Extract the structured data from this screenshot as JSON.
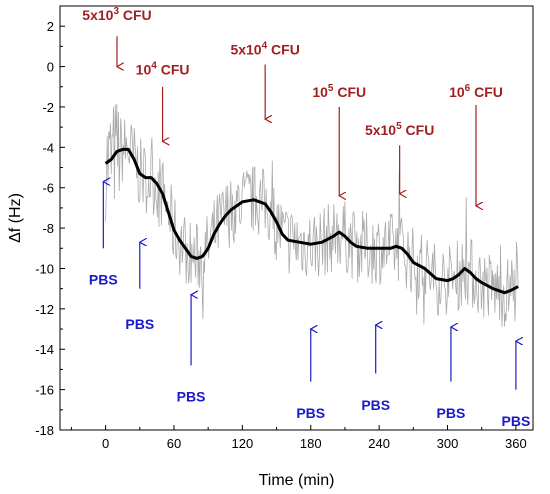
{
  "chart_data": {
    "type": "line",
    "xlabel": "Time (min)",
    "ylabel": "Δf (Hz)",
    "xlim": [
      -40,
      375
    ],
    "ylim": [
      -18,
      3
    ],
    "xticks": [
      0,
      60,
      120,
      180,
      240,
      300,
      360
    ],
    "yticks": [
      2,
      0,
      -2,
      -4,
      -6,
      -8,
      -10,
      -12,
      -14,
      -16,
      -18
    ],
    "series": [
      {
        "color": "#000000",
        "points": [
          [
            0,
            -4.8
          ],
          [
            5,
            -4.6
          ],
          [
            10,
            -4.2
          ],
          [
            15,
            -4.1
          ],
          [
            20,
            -4.1
          ],
          [
            25,
            -4.6
          ],
          [
            30,
            -5.3
          ],
          [
            35,
            -5.5
          ],
          [
            40,
            -5.5
          ],
          [
            45,
            -5.8
          ],
          [
            50,
            -6.3
          ],
          [
            55,
            -7.2
          ],
          [
            60,
            -8.1
          ],
          [
            65,
            -8.6
          ],
          [
            70,
            -9.0
          ],
          [
            75,
            -9.4
          ],
          [
            80,
            -9.5
          ],
          [
            85,
            -9.4
          ],
          [
            90,
            -9.0
          ],
          [
            95,
            -8.3
          ],
          [
            100,
            -7.8
          ],
          [
            105,
            -7.4
          ],
          [
            110,
            -7.1
          ],
          [
            115,
            -6.9
          ],
          [
            120,
            -6.7
          ],
          [
            130,
            -6.6
          ],
          [
            135,
            -6.7
          ],
          [
            140,
            -6.8
          ],
          [
            145,
            -7.2
          ],
          [
            150,
            -7.7
          ],
          [
            155,
            -8.3
          ],
          [
            160,
            -8.6
          ],
          [
            170,
            -8.7
          ],
          [
            180,
            -8.8
          ],
          [
            190,
            -8.7
          ],
          [
            200,
            -8.4
          ],
          [
            205,
            -8.2
          ],
          [
            210,
            -8.4
          ],
          [
            215,
            -8.7
          ],
          [
            220,
            -8.9
          ],
          [
            230,
            -9.0
          ],
          [
            240,
            -9.0
          ],
          [
            250,
            -9.0
          ],
          [
            255,
            -8.9
          ],
          [
            260,
            -9.0
          ],
          [
            265,
            -9.3
          ],
          [
            270,
            -9.7
          ],
          [
            280,
            -10.0
          ],
          [
            290,
            -10.5
          ],
          [
            300,
            -10.6
          ],
          [
            305,
            -10.5
          ],
          [
            310,
            -10.3
          ],
          [
            315,
            -10.0
          ],
          [
            320,
            -10.2
          ],
          [
            325,
            -10.5
          ],
          [
            330,
            -10.7
          ],
          [
            340,
            -11.0
          ],
          [
            350,
            -11.2
          ],
          [
            355,
            -11.1
          ],
          [
            362,
            -10.9
          ]
        ]
      },
      {
        "color": "#aaaaaa",
        "noise_amplitude": 1.8,
        "x_range": [
          0,
          362
        ]
      }
    ],
    "annotations": {
      "cfu": [
        {
          "x": 10,
          "label": "5x10",
          "sup": "3",
          "unit": " CFU",
          "arrow_y0": 1.5,
          "arrow_y1": 0.0,
          "label_y": 2.3
        },
        {
          "x": 50,
          "label": "10",
          "sup": "4",
          "unit": " CFU",
          "arrow_y0": -1.0,
          "arrow_y1": -3.7,
          "label_y": -0.4
        },
        {
          "x": 140,
          "label": "5x10",
          "sup": "4",
          "unit": " CFU",
          "arrow_y0": 0.1,
          "arrow_y1": -2.6,
          "label_y": 0.6
        },
        {
          "x": 205,
          "label": "10",
          "sup": "5",
          "unit": " CFU",
          "arrow_y0": -2.0,
          "arrow_y1": -6.4,
          "label_y": -1.5
        },
        {
          "x": 258,
          "label": "5x10",
          "sup": "5",
          "unit": " CFU",
          "arrow_y0": -3.9,
          "arrow_y1": -6.3,
          "label_y": -3.4
        },
        {
          "x": 325,
          "label": "10",
          "sup": "6",
          "unit": " CFU",
          "arrow_y0": -1.9,
          "arrow_y1": -6.9,
          "label_y": -1.5
        }
      ],
      "pbs": [
        {
          "x": -2,
          "label": "PBS",
          "arrow_y0": -9.0,
          "arrow_y1": -5.7,
          "label_y": -10.8
        },
        {
          "x": 30,
          "label": "PBS",
          "arrow_y0": -11.0,
          "arrow_y1": -8.7,
          "label_y": -13.0
        },
        {
          "x": 75,
          "label": "PBS",
          "arrow_y0": -14.8,
          "arrow_y1": -11.3,
          "label_y": -16.6
        },
        {
          "x": 180,
          "label": "PBS",
          "arrow_y0": -15.6,
          "arrow_y1": -13.0,
          "label_y": -17.4
        },
        {
          "x": 237,
          "label": "PBS",
          "arrow_y0": -15.2,
          "arrow_y1": -12.8,
          "label_y": -17.0
        },
        {
          "x": 303,
          "label": "PBS",
          "arrow_y0": -15.6,
          "arrow_y1": -12.9,
          "label_y": -17.4
        },
        {
          "x": 360,
          "label": "PBS",
          "arrow_y0": -16.0,
          "arrow_y1": -13.6,
          "label_y": -17.8
        }
      ]
    }
  }
}
